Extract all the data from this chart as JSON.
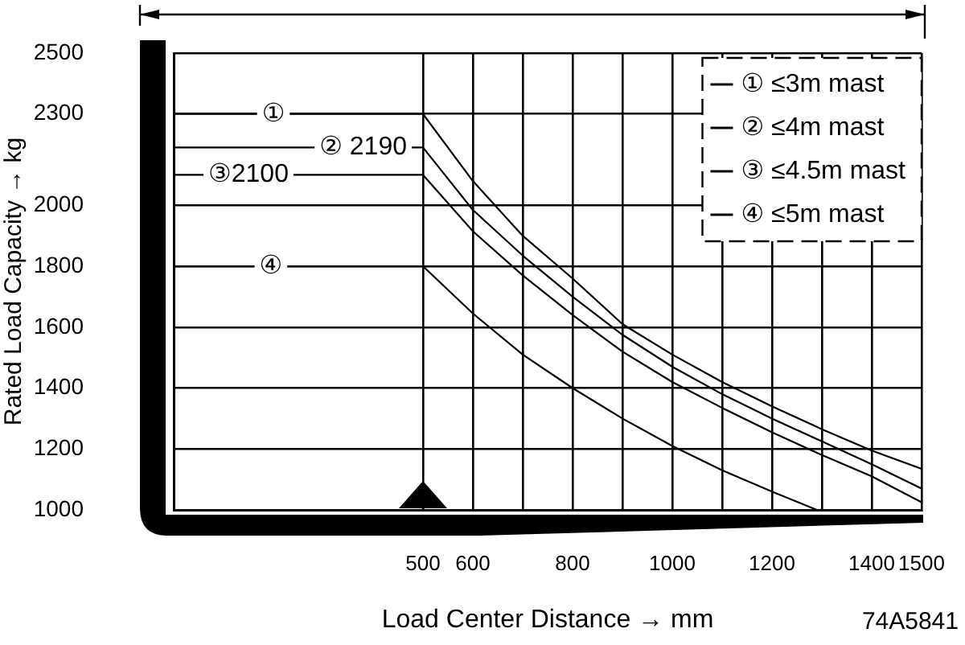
{
  "chart_data": {
    "type": "line",
    "xlabel": "Load Center Distance → mm",
    "ylabel": "Rated Load Capacity → kg",
    "x": [
      0,
      500,
      600,
      700,
      800,
      900,
      1000,
      1100,
      1200,
      1300,
      1400,
      1500
    ],
    "xlim": [
      0,
      1500
    ],
    "xticks": [
      500,
      600,
      {
        "value": 700,
        "label": null
      },
      800,
      {
        "value": 900,
        "label": null
      },
      1000,
      {
        "value": 1100,
        "label": null
      },
      1200,
      {
        "value": 1300,
        "label": null
      },
      1400,
      1500
    ],
    "ylim": [
      1000,
      2500
    ],
    "yticks": [
      1000,
      1200,
      1400,
      1600,
      1800,
      2000,
      2300,
      2500
    ],
    "series": [
      {
        "name": "① ≤3m mast",
        "color": "#000000",
        "values": [
          2300,
          2300,
          2080,
          1900,
          1760,
          1610,
          1510,
          1420,
          1340,
          1265,
          1195,
          1135
        ]
      },
      {
        "name": "② ≤4m mast",
        "color": "#000000",
        "values": [
          2190,
          2190,
          1985,
          1835,
          1700,
          1575,
          1470,
          1380,
          1300,
          1225,
          1150,
          1070
        ]
      },
      {
        "name": "③ ≤4.5m mast",
        "color": "#000000",
        "values": [
          2100,
          2100,
          1915,
          1770,
          1640,
          1520,
          1420,
          1335,
          1255,
          1180,
          1110,
          1025
        ]
      },
      {
        "name": "④ ≤5m mast",
        "color": "#000000",
        "x": [
          0,
          500,
          600,
          700,
          800,
          900,
          1000,
          1100,
          1200,
          1290
        ],
        "values": [
          1800,
          1800,
          1645,
          1510,
          1400,
          1300,
          1210,
          1130,
          1060,
          1000
        ]
      }
    ],
    "annotations": [
      {
        "text": "①",
        "x": 200,
        "y": 2300
      },
      {
        "text": "② 2190",
        "x": 380,
        "y": 2190
      },
      {
        "text": "③2100",
        "x": 150,
        "y": 2100
      },
      {
        "text": "④",
        "x": 195,
        "y": 1800
      },
      "74A5841"
    ],
    "grid": true,
    "legend": "top right"
  }
}
